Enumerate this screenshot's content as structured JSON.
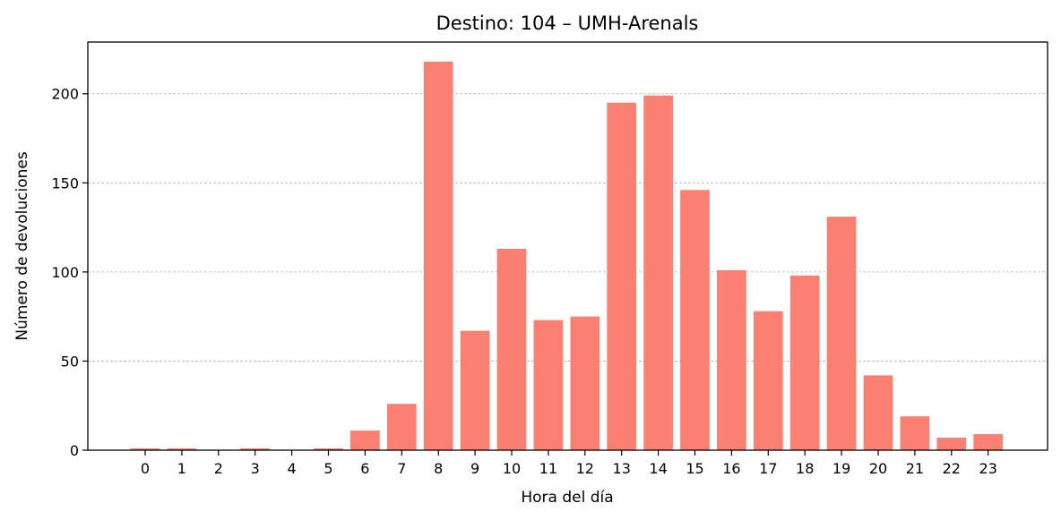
{
  "chart_data": {
    "type": "bar",
    "title": "Destino: 104 – UMH-Arenals",
    "xlabel": "Hora del día",
    "ylabel": "Número de devoluciones",
    "categories": [
      "0",
      "1",
      "2",
      "3",
      "4",
      "5",
      "6",
      "7",
      "8",
      "9",
      "10",
      "11",
      "12",
      "13",
      "14",
      "15",
      "16",
      "17",
      "18",
      "19",
      "20",
      "21",
      "22",
      "23"
    ],
    "values": [
      1,
      1,
      0,
      1,
      0,
      1,
      11,
      26,
      218,
      67,
      113,
      73,
      75,
      195,
      199,
      146,
      101,
      78,
      98,
      131,
      42,
      19,
      7,
      9
    ],
    "ylim": [
      0,
      229
    ],
    "yticks": [
      0,
      50,
      100,
      150,
      200
    ],
    "grid": "y-dashed",
    "bar_color": "#fa8072",
    "grid_color": "#b0b0b0"
  }
}
